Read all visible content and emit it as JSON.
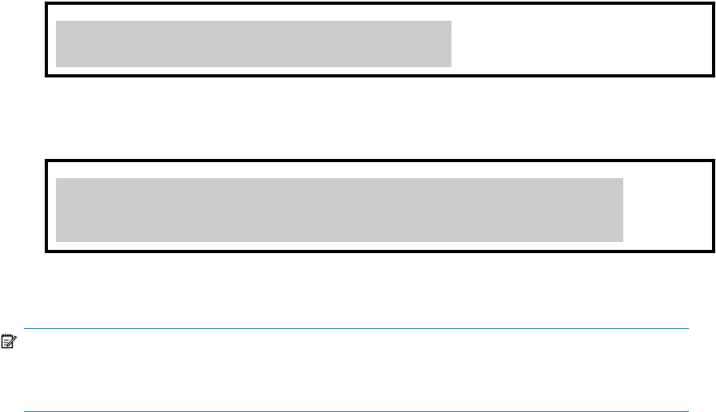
{
  "colors": {
    "frame_border": "#000000",
    "redaction_fill": "#cccccc",
    "note_rule": "#1a7fa8"
  },
  "code_blocks": [
    {
      "content": ""
    },
    {
      "content": ""
    }
  ],
  "note": {
    "icon": "note-pencil-icon",
    "text": ""
  }
}
